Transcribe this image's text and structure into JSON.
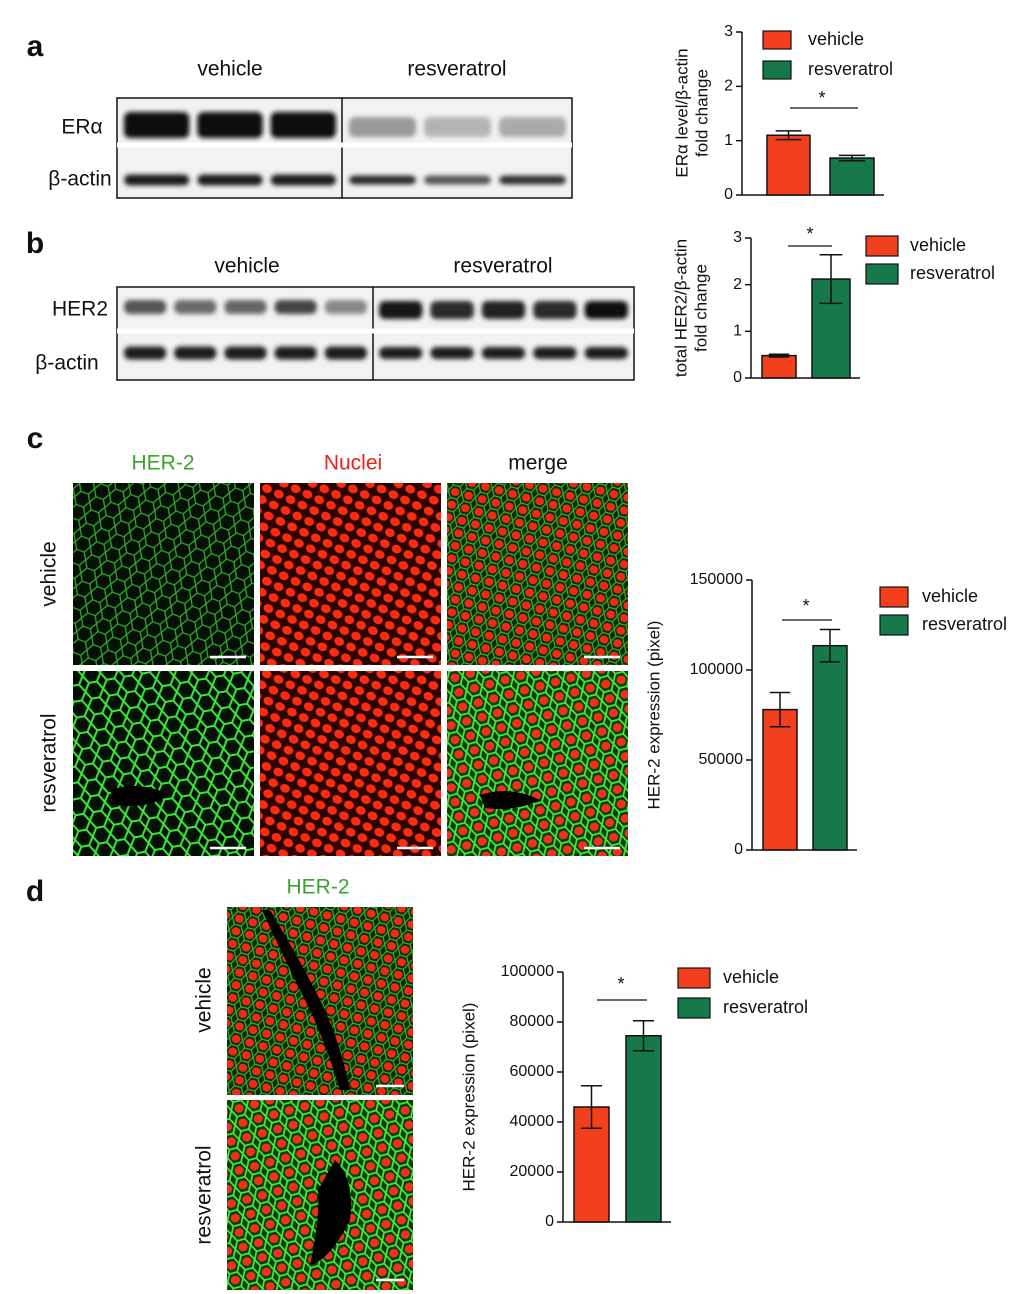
{
  "panel_labels": [
    "a",
    "b",
    "c",
    "d"
  ],
  "blot_a": {
    "groups": [
      "vehicle",
      "resveratrol"
    ],
    "rows": [
      "ERα",
      "β-actin"
    ]
  },
  "blot_b": {
    "groups": [
      "vehicle",
      "resveratrol"
    ],
    "rows": [
      "HER2",
      "β-actin"
    ]
  },
  "images_c": {
    "columns": [
      "HER-2",
      "Nuclei",
      "merge"
    ],
    "rows": [
      "vehicle",
      "resveratrol"
    ]
  },
  "images_d": {
    "title": "HER-2",
    "rows": [
      "vehicle",
      "resveratrol"
    ]
  },
  "chart_data": [
    {
      "type": "bar",
      "ylabel": [
        "ERα level/β-actin",
        "fold change"
      ],
      "series": [
        {
          "name": "vehicle",
          "color": "#f2401e",
          "values": [
            1.1
          ],
          "errors": [
            0.08
          ]
        },
        {
          "name": "resveratrol",
          "color": "#17794a",
          "values": [
            0.68
          ],
          "errors": [
            0.05
          ]
        }
      ],
      "ylim": [
        0,
        3
      ],
      "yticks": [
        0,
        1,
        2,
        3
      ],
      "annotations": [
        "*"
      ]
    },
    {
      "type": "bar",
      "ylabel": [
        "total HER2/β-actin",
        "fold change"
      ],
      "series": [
        {
          "name": "vehicle",
          "color": "#f2401e",
          "values": [
            0.48
          ],
          "errors": [
            0.03
          ]
        },
        {
          "name": "resveratrol",
          "color": "#17794a",
          "values": [
            2.12
          ],
          "errors": [
            0.52
          ]
        }
      ],
      "ylim": [
        0,
        3
      ],
      "yticks": [
        0,
        1,
        2,
        3
      ],
      "annotations": [
        "*"
      ]
    },
    {
      "type": "bar",
      "ylabel": [
        "HER-2 expression (pixel)"
      ],
      "series": [
        {
          "name": "vehicle",
          "color": "#f2401e",
          "values": [
            78000
          ],
          "errors": [
            9500
          ]
        },
        {
          "name": "resveratrol",
          "color": "#17794a",
          "values": [
            113500
          ],
          "errors": [
            9000
          ]
        }
      ],
      "ylim": [
        0,
        150000
      ],
      "yticks": [
        0,
        50000,
        100000,
        150000
      ],
      "annotations": [
        "*"
      ]
    },
    {
      "type": "bar",
      "ylabel": [
        "HER-2 expression (pixel)"
      ],
      "series": [
        {
          "name": "vehicle",
          "color": "#f2401e",
          "values": [
            46000
          ],
          "errors": [
            8500
          ]
        },
        {
          "name": "resveratrol",
          "color": "#17794a",
          "values": [
            74500
          ],
          "errors": [
            6000
          ]
        }
      ],
      "ylim": [
        0,
        100000
      ],
      "yticks": [
        0,
        20000,
        40000,
        60000,
        80000,
        100000
      ],
      "annotations": [
        "*"
      ]
    }
  ]
}
